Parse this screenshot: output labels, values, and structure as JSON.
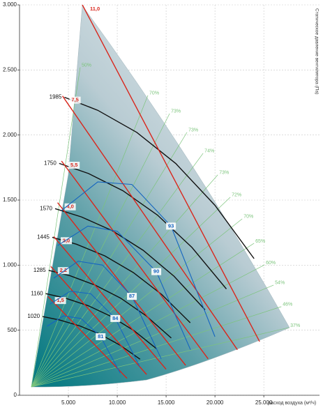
{
  "chart_data": {
    "type": "fan-curves",
    "x_label": "расход воздуха (м³/ч)",
    "y_label": "Статическое давление вентилятора (Па)",
    "xlim": [
      0,
      30700
    ],
    "ylim": [
      0,
      3000
    ],
    "xticks": [
      {
        "value": 5000,
        "label": "5.000"
      },
      {
        "value": 10000,
        "label": "10.000"
      },
      {
        "value": 15000,
        "label": "15.000"
      },
      {
        "value": 20000,
        "label": "20.000"
      },
      {
        "value": 25000,
        "label": "25.000"
      }
    ],
    "yticks": [
      0,
      500,
      {
        "value": 1000,
        "label": "1.000"
      },
      {
        "value": 1500,
        "label": "1.500"
      },
      {
        "value": 2000,
        "label": "2.000"
      },
      {
        "value": 2500,
        "label": "2.500"
      },
      {
        "value": 3000,
        "label": "3.000"
      }
    ],
    "grid": true,
    "speed_curves": {
      "color": "#111111",
      "series": [
        {
          "name": "1985",
          "x": [
            4600,
            8000,
            12000,
            16000,
            20000,
            24000
          ],
          "values": [
            2290,
            2190,
            2020,
            1780,
            1460,
            1050
          ]
        },
        {
          "name": "1750",
          "x": [
            4057,
            7056,
            10584,
            14112,
            17640,
            21168
          ],
          "values": [
            1782,
            1704,
            1572,
            1385,
            1136,
            817
          ]
        },
        {
          "name": "1570",
          "x": [
            3639,
            6328,
            9492,
            12656,
            15820,
            18984
          ],
          "values": [
            1434,
            1371,
            1265,
            1114,
            914,
            657
          ]
        },
        {
          "name": "1445",
          "x": [
            3349,
            5824,
            8736,
            11648,
            14560,
            17472
          ],
          "values": [
            1214,
            1161,
            1071,
            943,
            774,
            557
          ]
        },
        {
          "name": "1285",
          "x": [
            2976,
            5176,
            7764,
            10352,
            12940,
            15528
          ],
          "values": [
            960,
            918,
            846,
            746,
            612,
            440
          ]
        },
        {
          "name": "1160",
          "x": [
            2686,
            4672,
            7008,
            9344,
            11680,
            14016
          ],
          "values": [
            781,
            747,
            689,
            607,
            498,
            358
          ]
        },
        {
          "name": "1020",
          "x": [
            2364,
            4112,
            6168,
            8224,
            10280,
            12336
          ],
          "values": [
            605,
            578,
            533,
            470,
            385,
            277
          ]
        }
      ]
    },
    "power_curves": {
      "color": "#d9261c",
      "series": [
        {
          "name": "11,0",
          "x": [
            6430,
            24570
          ],
          "values": [
            3000,
            413
          ]
        },
        {
          "name": "7,5",
          "x": [
            4400,
            22300
          ],
          "values": [
            2300,
            350
          ]
        },
        {
          "name": "5,5",
          "x": [
            4300,
            19300
          ],
          "values": [
            1800,
            280
          ]
        },
        {
          "name": "4,0",
          "x": [
            3900,
            17000
          ],
          "values": [
            1480,
            230
          ]
        },
        {
          "name": "3,0",
          "x": [
            3500,
            15000
          ],
          "values": [
            1220,
            200
          ]
        },
        {
          "name": "2,2",
          "x": [
            3200,
            13000
          ],
          "values": [
            990,
            160
          ]
        },
        {
          "name": "1,5",
          "x": [
            2900,
            11000
          ],
          "values": [
            760,
            130
          ]
        }
      ]
    },
    "efficiency_curves": {
      "color": "#1565c0",
      "series": [
        {
          "name": "93",
          "x": [
            4300,
            8000,
            11500,
            15500,
            20000
          ],
          "values": [
            1420,
            1640,
            1620,
            1300,
            450
          ]
        },
        {
          "name": "90",
          "x": [
            3900,
            7000,
            10000,
            14000,
            17500
          ],
          "values": [
            1150,
            1300,
            1260,
            950,
            350
          ]
        },
        {
          "name": "87",
          "x": [
            3500,
            6000,
            8500,
            11500,
            14500
          ],
          "values": [
            900,
            1030,
            1000,
            760,
            280
          ]
        },
        {
          "name": "84",
          "x": [
            3100,
            5200,
            7300,
            9800,
            12300
          ],
          "values": [
            700,
            800,
            780,
            590,
            220
          ]
        },
        {
          "name": "81",
          "x": [
            2800,
            4500,
            6300,
            8300,
            10300
          ],
          "values": [
            530,
            610,
            590,
            450,
            170
          ]
        }
      ]
    },
    "system_lines": {
      "color": "#7cc47c",
      "labels": [
        "50%",
        "70%",
        "73%",
        "73%",
        "74%",
        "73%",
        "72%",
        "70%",
        "65%",
        "60%",
        "54%",
        "46%",
        "37%"
      ],
      "x": [
        6210,
        13140,
        15360,
        17140,
        18790,
        20290,
        21570,
        22790,
        24000,
        25070,
        26000,
        26790,
        27570
      ],
      "values": [
        2520,
        2305,
        2165,
        2021,
        1860,
        1694,
        1522,
        1356,
        1168,
        1002,
        847,
        681,
        520
      ]
    }
  }
}
